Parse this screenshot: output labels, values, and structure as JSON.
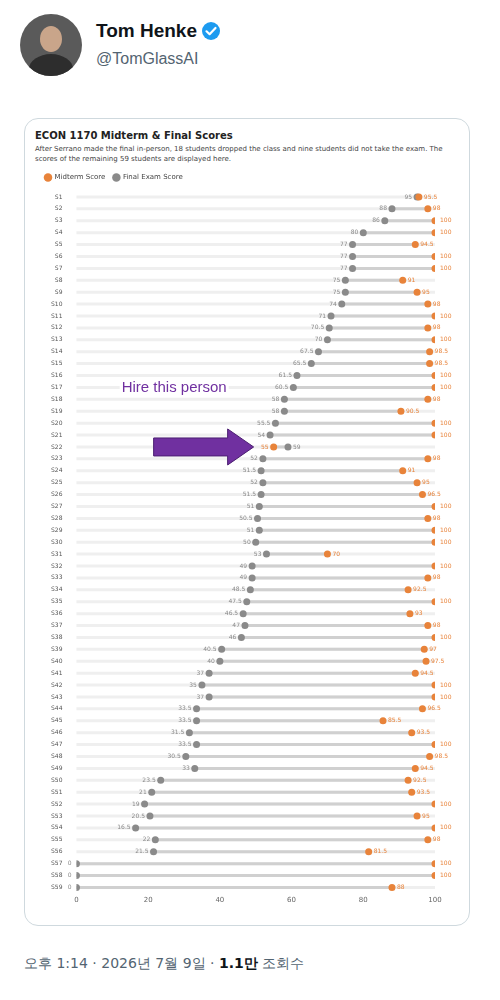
{
  "post": {
    "author": "Tom Henke",
    "handle": "@TomGlassAI",
    "footer_meta": "오후 1:14 · 2026년 7월 9일 ·",
    "views": "1.1만",
    "views_label": "조회수"
  },
  "chart_data": {
    "type": "dumbbell",
    "title": "ECON 1170 Midterm & Final Scores",
    "subtitle": "After Serrano made the final in-person, 18 students dropped the class and nine students did not take the exam. The scores of the remaining 59 students are displayed here.",
    "orientation": "horizontal",
    "categories": [
      "S1",
      "S2",
      "S3",
      "S4",
      "S5",
      "S6",
      "S7",
      "S8",
      "S9",
      "S10",
      "S11",
      "S12",
      "S13",
      "S14",
      "S15",
      "S16",
      "S17",
      "S18",
      "S19",
      "S20",
      "S21",
      "S22",
      "S23",
      "S24",
      "S25",
      "S26",
      "S27",
      "S28",
      "S29",
      "S30",
      "S31",
      "S32",
      "S33",
      "S34",
      "S35",
      "S36",
      "S37",
      "S38",
      "S39",
      "S40",
      "S41",
      "S42",
      "S43",
      "S44",
      "S45",
      "S46",
      "S47",
      "S48",
      "S49",
      "S50",
      "S51",
      "S52",
      "S53",
      "S54",
      "S55",
      "S56",
      "S57",
      "S58",
      "S59"
    ],
    "series": [
      {
        "name": "Midterm Score",
        "color": "#e8833a",
        "marker": "circle",
        "values": [
          95.5,
          98,
          100,
          100,
          94.5,
          100,
          100,
          91,
          95,
          98,
          100,
          98,
          100,
          98.5,
          98.5,
          100,
          100,
          98,
          90.5,
          100,
          100,
          55,
          98,
          91,
          95,
          96.5,
          100,
          98,
          100,
          100,
          70,
          100,
          98,
          92.5,
          100,
          93,
          98,
          100,
          97,
          97.5,
          94.5,
          100,
          100,
          96.5,
          85.5,
          93.5,
          100,
          98.5,
          94.5,
          92.5,
          93.5,
          100,
          95,
          100,
          98,
          81.5,
          100,
          100,
          88
        ]
      },
      {
        "name": "Final Exam Score",
        "color": "#8a8a8a",
        "marker": "circle",
        "values": [
          95,
          88,
          86,
          80,
          77,
          77,
          77,
          75,
          75,
          74,
          71,
          70.5,
          70,
          67.5,
          65.5,
          61.5,
          60.5,
          58,
          58,
          55.5,
          54,
          59,
          52,
          51.5,
          52,
          51.5,
          51,
          50.5,
          51,
          50,
          53,
          49,
          49,
          48.5,
          47.5,
          46.5,
          47,
          46,
          40.5,
          40,
          37,
          35,
          37,
          33.5,
          33.5,
          31.5,
          33.5,
          30.5,
          33,
          23.5,
          21,
          19,
          20.5,
          16.5,
          22,
          21.5,
          0,
          0,
          0
        ]
      }
    ],
    "xlim": [
      0,
      100
    ],
    "xticks": [
      0,
      20,
      40,
      60,
      80,
      100
    ],
    "grid": false,
    "legend": "top-left",
    "data_labels": true,
    "annotations": [
      {
        "text": "Hire this person",
        "category": "S22",
        "color": "#7030a0"
      }
    ]
  }
}
